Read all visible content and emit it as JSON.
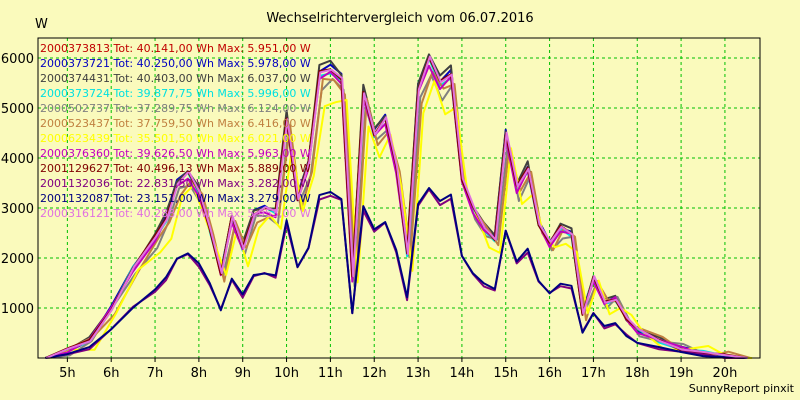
{
  "chart_data": {
    "type": "line",
    "title": "Wechselrichtervergleich vom 06.07.2016",
    "ylabel": "W",
    "credit": "SunnyReport pinxit",
    "x_ticks": [
      "5h",
      "6h",
      "7h",
      "8h",
      "9h",
      "10h",
      "11h",
      "12h",
      "13h",
      "14h",
      "15h",
      "16h",
      "17h",
      "18h",
      "19h",
      "20h"
    ],
    "y_ticks": [
      1000,
      2000,
      3000,
      4000,
      5000,
      6000
    ],
    "xlim": [
      4.33,
      20.8
    ],
    "ylim": [
      0,
      6400
    ],
    "grid": true,
    "legend_position": "top-left",
    "base_profile": {
      "x": [
        4.5,
        5.0,
        5.5,
        6.0,
        6.5,
        7.0,
        7.25,
        7.5,
        7.75,
        8.0,
        8.25,
        8.5,
        8.75,
        9.0,
        9.25,
        9.5,
        9.75,
        10.0,
        10.25,
        10.5,
        10.75,
        11.0,
        11.25,
        11.5,
        11.75,
        12.0,
        12.25,
        12.5,
        12.75,
        13.0,
        13.25,
        13.5,
        13.75,
        14.0,
        14.25,
        14.5,
        14.75,
        15.0,
        15.25,
        15.5,
        15.75,
        16.0,
        16.25,
        16.5,
        16.75,
        17.0,
        17.25,
        17.5,
        17.75,
        18.0,
        18.5,
        19.0,
        19.5,
        20.0,
        20.5
      ],
      "y": [
        0,
        150,
        350,
        1000,
        1800,
        2400,
        2800,
        3500,
        3700,
        3300,
        2600,
        1700,
        2800,
        2200,
        2900,
        3000,
        2900,
        4800,
        3200,
        3900,
        5700,
        5800,
        5600,
        1600,
        5300,
        4500,
        4800,
        3800,
        2100,
        5400,
        6000,
        5500,
        5700,
        3600,
        3000,
        2600,
        2400,
        4500,
        3400,
        3800,
        2700,
        2300,
        2600,
        2500,
        900,
        1600,
        1100,
        1200,
        800,
        550,
        350,
        200,
        100,
        30,
        0
      ]
    },
    "series": [
      {
        "name": "2000373813",
        "total": "Tot: 40.141,00 Wh",
        "max": "Max: 5.951,00 W",
        "color": "#c00000",
        "scale": 1.0,
        "offset": 0,
        "wiggle": 40
      },
      {
        "name": "2000373721",
        "total": "Tot: 40.250,00 Wh",
        "max": "Max: 5.978,00 W",
        "color": "#0000c0",
        "scale": 1.01,
        "offset": 0,
        "wiggle": 30
      },
      {
        "name": "2000374431",
        "total": "Tot: 40.403,00 Wh",
        "max": "Max: 6.037,00 W",
        "color": "#404040",
        "scale": 1.02,
        "offset": 0,
        "wiggle": 60
      },
      {
        "name": "2000373724",
        "total": "Tot: 39.877,75 Wh",
        "max": "Max: 5.996,00 W",
        "color": "#00e0e0",
        "scale": 0.99,
        "offset": 0,
        "wiggle": 50
      },
      {
        "name": "2000502737",
        "total": "Tot: 37.289,75 Wh",
        "max": "Max: 6.124,00 W",
        "color": "#808080",
        "scale": 0.95,
        "offset": 0.05,
        "wiggle": 90
      },
      {
        "name": "2000523437",
        "total": "Tot: 37.759,50 Wh",
        "max": "Max: 6.416,00 W",
        "color": "#c08040",
        "scale": 0.96,
        "offset": 0.08,
        "wiggle": 110
      },
      {
        "name": "2000623439",
        "total": "Tot: 35.501,50 Wh",
        "max": "Max: 6.021,00 W",
        "color": "#ffff00",
        "scale": 0.9,
        "offset": 0.12,
        "wiggle": 150
      },
      {
        "name": "2000376360",
        "total": "Tot: 39.626,50 Wh",
        "max": "Max: 5.963,00 W",
        "color": "#c000c0",
        "scale": 0.98,
        "offset": 0,
        "wiggle": 40
      },
      {
        "name": "2001129627",
        "total": "Tot: 40.496,13 Wh",
        "max": "Max: 5.889,00 W",
        "color": "#800000",
        "scale": 1.0,
        "offset": 0,
        "wiggle": 45
      },
      {
        "name": "2001132036",
        "total": "Tot: 22.831,50 Wh",
        "max": "Max: 3.282,00 W",
        "color": "#800080",
        "scale": 0.56,
        "offset": 0,
        "wiggle": 25
      },
      {
        "name": "2001132087",
        "total": "Tot: 23.151,00 Wh",
        "max": "Max: 3.279,00 W",
        "color": "#000080",
        "scale": 0.57,
        "offset": 0,
        "wiggle": 20
      },
      {
        "name": "2000316121",
        "total": "Tot: 40.288,00 Wh",
        "max": "Max: 5.953,00 W",
        "color": "#e070e0",
        "scale": 1.0,
        "offset": 0.02,
        "wiggle": 35
      }
    ]
  }
}
